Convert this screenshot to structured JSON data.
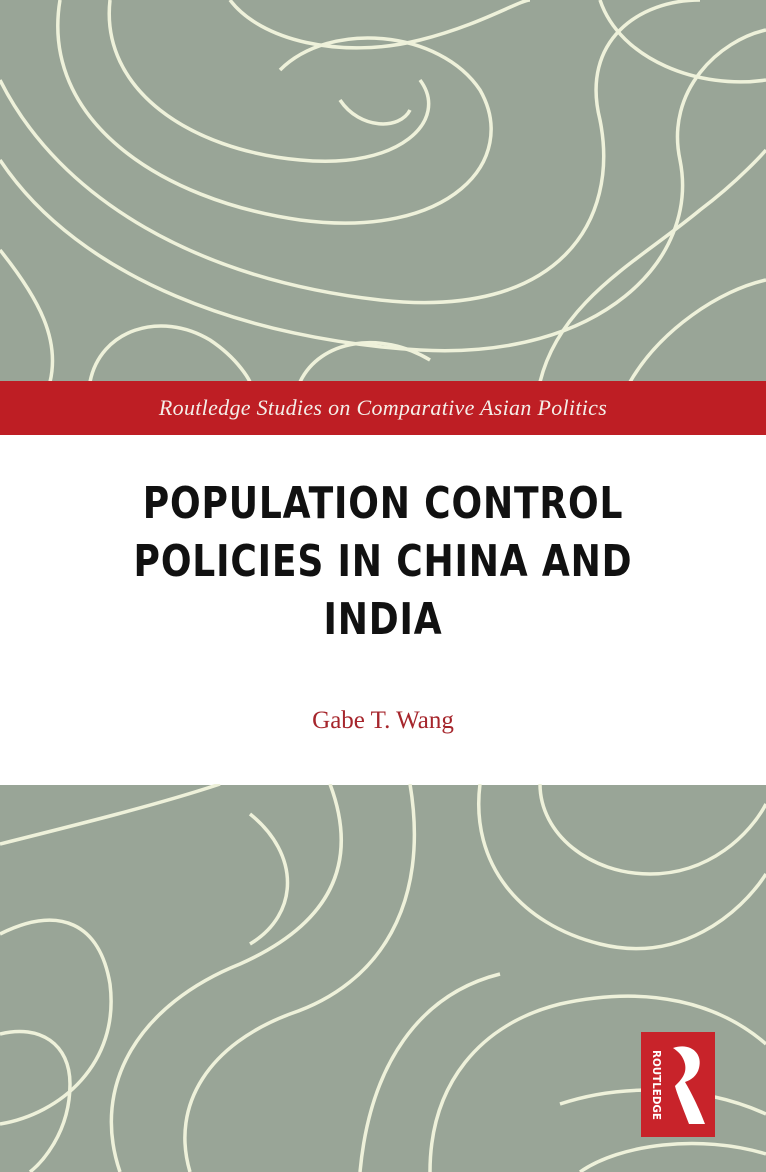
{
  "cover": {
    "series": "Routledge Studies on Comparative Asian Politics",
    "title_lines": [
      "POPULATION CONTROL",
      "POLICIES IN CHINA AND",
      "INDIA"
    ],
    "author": "Gabe T. Wang",
    "publisher_logo_text": "ROUTLEDGE"
  },
  "colors": {
    "background": "#99a597",
    "pattern_lines": "#eef1da",
    "band": "#be1e24",
    "author": "#a6262c"
  }
}
